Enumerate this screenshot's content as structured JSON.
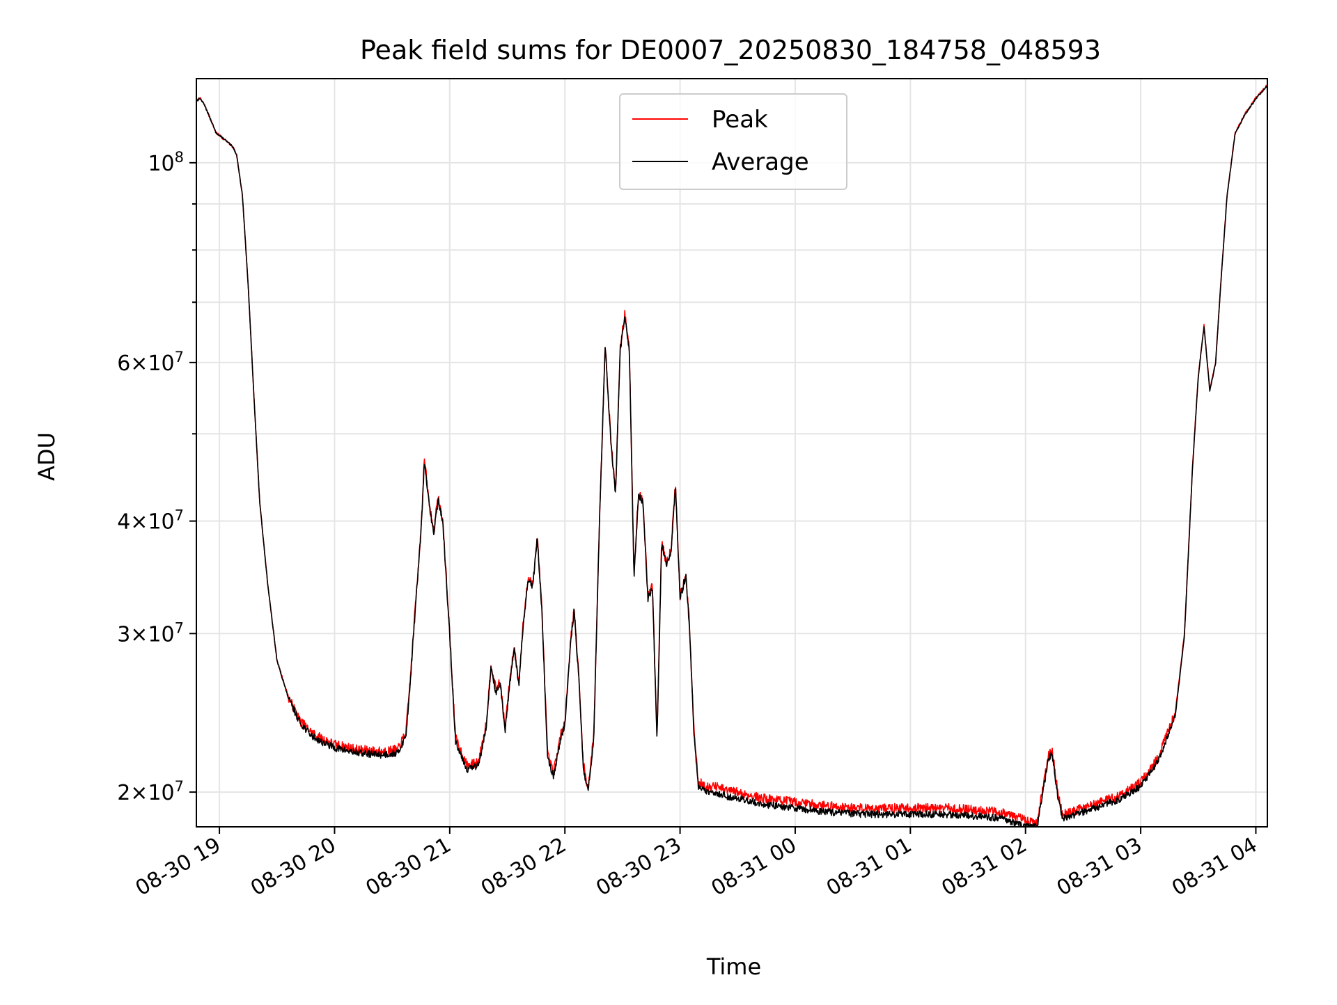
{
  "chart_data": {
    "type": "line",
    "title": "Peak field sums for DE0007_20250830_184758_048593",
    "xlabel": "Time",
    "ylabel": "ADU",
    "yscale": "log",
    "grid": true,
    "legend_position": "upper center",
    "x_unit": "hours since 2025-08-30 18:00",
    "xlim": [
      18.8,
      28.1
    ],
    "ylim": [
      18300000,
      124000000
    ],
    "x_ticks": [
      {
        "value": 19,
        "label": "08-30 19"
      },
      {
        "value": 20,
        "label": "08-30 20"
      },
      {
        "value": 21,
        "label": "08-30 21"
      },
      {
        "value": 22,
        "label": "08-30 22"
      },
      {
        "value": 23,
        "label": "08-30 23"
      },
      {
        "value": 24,
        "label": "08-31 00"
      },
      {
        "value": 25,
        "label": "08-31 01"
      },
      {
        "value": 26,
        "label": "08-31 02"
      },
      {
        "value": 27,
        "label": "08-31 03"
      },
      {
        "value": 28,
        "label": "08-31 04"
      }
    ],
    "y_major_ticks": [
      {
        "value": 100000000,
        "base": "10",
        "exp": "8",
        "mant": ""
      },
      {
        "value": 60000000,
        "base": "10",
        "exp": "7",
        "mant": "6"
      },
      {
        "value": 40000000,
        "base": "10",
        "exp": "7",
        "mant": "4"
      },
      {
        "value": 30000000,
        "base": "10",
        "exp": "7",
        "mant": "3"
      },
      {
        "value": 20000000,
        "base": "10",
        "exp": "7",
        "mant": "2"
      }
    ],
    "y_minor_grid": [
      50000000,
      70000000,
      80000000,
      90000000
    ],
    "series": [
      {
        "name": "Peak",
        "color": "#ff0000",
        "noise": 0.012,
        "bias": 1.01,
        "seed": 7,
        "x": [
          18.8,
          18.83,
          18.87,
          18.92,
          18.97,
          19.05,
          19.12,
          19.15,
          19.2,
          19.25,
          19.3,
          19.35,
          19.42,
          19.5,
          19.6,
          19.7,
          19.8,
          19.9,
          20.0,
          20.2,
          20.4,
          20.55,
          20.62,
          20.66,
          20.7,
          20.75,
          20.78,
          20.82,
          20.86,
          20.9,
          20.94,
          21.0,
          21.05,
          21.15,
          21.25,
          21.32,
          21.36,
          21.4,
          21.44,
          21.48,
          21.52,
          21.56,
          21.6,
          21.64,
          21.68,
          21.72,
          21.76,
          21.8,
          21.85,
          21.9,
          21.96,
          22.0,
          22.05,
          22.08,
          22.12,
          22.16,
          22.2,
          22.25,
          22.3,
          22.35,
          22.4,
          22.44,
          22.48,
          22.52,
          22.56,
          22.6,
          22.64,
          22.68,
          22.72,
          22.76,
          22.8,
          22.84,
          22.88,
          22.92,
          22.96,
          23.0,
          23.05,
          23.08,
          23.12,
          23.16,
          23.2,
          23.25,
          23.3,
          23.4,
          23.5,
          23.7,
          24.0,
          24.3,
          24.6,
          25.0,
          25.3,
          25.6,
          25.8,
          26.0,
          26.1,
          26.2,
          26.23,
          26.28,
          26.32,
          26.4,
          26.6,
          26.8,
          27.0,
          27.15,
          27.3,
          27.38,
          27.45,
          27.5,
          27.55,
          27.6,
          27.65,
          27.7,
          27.75,
          27.82,
          27.9,
          28.0,
          28.1
        ],
        "y": [
          117000000,
          118000000,
          116000000,
          112000000,
          108000000,
          106000000,
          104000000,
          102000000,
          92000000,
          73000000,
          55000000,
          42000000,
          34000000,
          28000000,
          25500000,
          24000000,
          23300000,
          22900000,
          22600000,
          22300000,
          22200000,
          22300000,
          23300000,
          27000000,
          32000000,
          39000000,
          47000000,
          42000000,
          39000000,
          42500000,
          40000000,
          30000000,
          23000000,
          21400000,
          21600000,
          24000000,
          27800000,
          26000000,
          26500000,
          23500000,
          26500000,
          29000000,
          26500000,
          31000000,
          34500000,
          34000000,
          38500000,
          32000000,
          22000000,
          21000000,
          23000000,
          24000000,
          29500000,
          32000000,
          27000000,
          21500000,
          20200000,
          23000000,
          40000000,
          63000000,
          49000000,
          43000000,
          62000000,
          68000000,
          62000000,
          35000000,
          43000000,
          42000000,
          33000000,
          34000000,
          23000000,
          38000000,
          36000000,
          37000000,
          44000000,
          33000000,
          35000000,
          31000000,
          23500000,
          20400000,
          20500000,
          20200000,
          20300000,
          20100000,
          20000000,
          19700000,
          19500000,
          19300000,
          19200000,
          19200000,
          19200000,
          19100000,
          19000000,
          18600000,
          18500000,
          22000000,
          22300000,
          20000000,
          18900000,
          19000000,
          19400000,
          19800000,
          20500000,
          21800000,
          24500000,
          30000000,
          46000000,
          58000000,
          66000000,
          56000000,
          60000000,
          75000000,
          92000000,
          108000000,
          113000000,
          118000000,
          122000000
        ]
      },
      {
        "name": "Average",
        "color": "#000000",
        "noise": 0.009,
        "bias": 1.0,
        "seed": 13,
        "x": [
          18.8,
          18.83,
          18.87,
          18.92,
          18.97,
          19.05,
          19.12,
          19.15,
          19.2,
          19.25,
          19.3,
          19.35,
          19.42,
          19.5,
          19.6,
          19.7,
          19.8,
          19.9,
          20.0,
          20.2,
          20.4,
          20.55,
          20.62,
          20.66,
          20.7,
          20.75,
          20.78,
          20.82,
          20.86,
          20.9,
          20.94,
          21.0,
          21.05,
          21.15,
          21.25,
          21.32,
          21.36,
          21.4,
          21.44,
          21.48,
          21.52,
          21.56,
          21.6,
          21.64,
          21.68,
          21.72,
          21.76,
          21.8,
          21.85,
          21.9,
          21.96,
          22.0,
          22.05,
          22.08,
          22.12,
          22.16,
          22.2,
          22.25,
          22.3,
          22.35,
          22.4,
          22.44,
          22.48,
          22.52,
          22.56,
          22.6,
          22.64,
          22.68,
          22.72,
          22.76,
          22.8,
          22.84,
          22.88,
          22.92,
          22.96,
          23.0,
          23.05,
          23.08,
          23.12,
          23.16,
          23.2,
          23.25,
          23.3,
          23.4,
          23.5,
          23.7,
          24.0,
          24.3,
          24.6,
          25.0,
          25.3,
          25.6,
          25.8,
          26.0,
          26.1,
          26.2,
          26.23,
          26.28,
          26.32,
          26.4,
          26.6,
          26.8,
          27.0,
          27.15,
          27.3,
          27.38,
          27.45,
          27.5,
          27.55,
          27.6,
          27.65,
          27.7,
          27.75,
          27.82,
          27.9,
          28.0,
          28.1
        ],
        "y": [
          117000000,
          118000000,
          116000000,
          112000000,
          108000000,
          106000000,
          104000000,
          102000000,
          92000000,
          73000000,
          55000000,
          42000000,
          34000000,
          28000000,
          25400000,
          23900000,
          23100000,
          22700000,
          22400000,
          22100000,
          22000000,
          22100000,
          23100000,
          26800000,
          31800000,
          38800000,
          46500000,
          41800000,
          38800000,
          42200000,
          39800000,
          29800000,
          22800000,
          21200000,
          21400000,
          23800000,
          27600000,
          25800000,
          26300000,
          23300000,
          26300000,
          28800000,
          26300000,
          30800000,
          34300000,
          33800000,
          38300000,
          31800000,
          21800000,
          20800000,
          22800000,
          23800000,
          29300000,
          31800000,
          26800000,
          21300000,
          20000000,
          22800000,
          39800000,
          62500000,
          48800000,
          42800000,
          61800000,
          67500000,
          61800000,
          34800000,
          42800000,
          41800000,
          32800000,
          33800000,
          22800000,
          37800000,
          35800000,
          36800000,
          43800000,
          32800000,
          34800000,
          30800000,
          23300000,
          20200000,
          20200000,
          19900000,
          20000000,
          19800000,
          19700000,
          19400000,
          19200000,
          19000000,
          18900000,
          18900000,
          18900000,
          18800000,
          18700000,
          18300000,
          18300000,
          21800000,
          22100000,
          19800000,
          18700000,
          18800000,
          19200000,
          19600000,
          20300000,
          21600000,
          24300000,
          29800000,
          45800000,
          57800000,
          65800000,
          55800000,
          59800000,
          74800000,
          91800000,
          107800000,
          112800000,
          117800000,
          121800000
        ]
      }
    ]
  }
}
